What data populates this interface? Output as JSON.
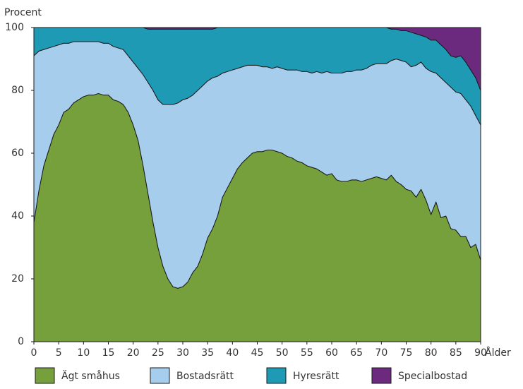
{
  "chart_data": {
    "type": "area",
    "stacked": true,
    "y_label": "Procent",
    "x_label": "Ålder",
    "x": [
      0,
      1,
      2,
      3,
      4,
      5,
      6,
      7,
      8,
      9,
      10,
      11,
      12,
      13,
      14,
      15,
      16,
      17,
      18,
      19,
      20,
      21,
      22,
      23,
      24,
      25,
      26,
      27,
      28,
      29,
      30,
      31,
      32,
      33,
      34,
      35,
      36,
      37,
      38,
      39,
      40,
      41,
      42,
      43,
      44,
      45,
      46,
      47,
      48,
      49,
      50,
      51,
      52,
      53,
      54,
      55,
      56,
      57,
      58,
      59,
      60,
      61,
      62,
      63,
      64,
      65,
      66,
      67,
      68,
      69,
      70,
      71,
      72,
      73,
      74,
      75,
      76,
      77,
      78,
      79,
      80,
      81,
      82,
      83,
      84,
      85,
      86,
      87,
      88,
      89,
      90
    ],
    "xlim": [
      0,
      90
    ],
    "xticks": [
      0,
      5,
      10,
      15,
      20,
      25,
      30,
      35,
      40,
      45,
      50,
      55,
      60,
      65,
      70,
      75,
      80,
      85,
      90
    ],
    "ylim": [
      0,
      100
    ],
    "yticks": [
      0,
      20,
      40,
      60,
      80,
      100
    ],
    "legend": "bottom",
    "series": [
      {
        "name": "Ägt småhus",
        "color": "#76a03c",
        "values": [
          38,
          48,
          56,
          61,
          66,
          69,
          73,
          74,
          76,
          77,
          78,
          78.5,
          78.5,
          79,
          78.5,
          78.5,
          77,
          76.5,
          75.5,
          73,
          69,
          64,
          56,
          47,
          38,
          30,
          24,
          20,
          17.5,
          17,
          17.5,
          19,
          22,
          24,
          28,
          33,
          36,
          40,
          46,
          49,
          52,
          55,
          57,
          58.5,
          60,
          60.5,
          60.5,
          61,
          61,
          60.5,
          60,
          59,
          58.5,
          57.5,
          57,
          56,
          55.5,
          55,
          54,
          53,
          53.5,
          51.5,
          51,
          51,
          51.5,
          51.5,
          51,
          51.5,
          52,
          52.5,
          52,
          51.5,
          53,
          51,
          50,
          48.5,
          48,
          46,
          48.5,
          45,
          40.5,
          44.5,
          39.5,
          40,
          36,
          35.5,
          33.5,
          33.5,
          30,
          31,
          26
        ]
      },
      {
        "name": "Bostadsrätt",
        "color": "#a7cdec",
        "values": [
          53,
          44.5,
          37,
          32.5,
          28,
          25.5,
          22,
          21,
          19.5,
          18.5,
          17.5,
          17,
          17,
          16.5,
          16.5,
          16.5,
          17,
          17,
          17.5,
          18,
          20,
          23,
          29,
          35.5,
          42,
          47,
          51.5,
          55.5,
          58,
          59,
          59.5,
          58.5,
          56.5,
          56,
          53.5,
          50,
          48,
          44.5,
          39.5,
          37,
          34.5,
          32,
          30.5,
          29.5,
          28,
          27.5,
          27,
          26.5,
          26,
          27,
          27,
          27.5,
          28,
          29,
          29,
          30,
          30,
          31,
          31.5,
          33,
          32,
          34,
          34.5,
          35,
          34.5,
          35,
          35.5,
          35.5,
          36,
          36,
          36.5,
          37,
          36.5,
          39,
          39.5,
          40.5,
          39.5,
          42,
          40.5,
          42,
          45.5,
          41,
          44.5,
          42.5,
          45,
          44,
          45.5,
          43.5,
          45,
          41,
          43
        ]
      },
      {
        "name": "Hyresrätt",
        "color": "#1f9ab5",
        "values": [
          9,
          7.5,
          7,
          6.5,
          6,
          5.5,
          5,
          5,
          4.5,
          4.5,
          4.5,
          4.5,
          4.5,
          4.5,
          5,
          5,
          6,
          6.5,
          7,
          9,
          11,
          13,
          15,
          17,
          19.5,
          22.5,
          24,
          24,
          24,
          23.5,
          22.5,
          22,
          21,
          19.5,
          18,
          16.5,
          15.5,
          15.5,
          14.5,
          14,
          13.5,
          13,
          12.5,
          12,
          12,
          12,
          12.5,
          12.5,
          13,
          12.5,
          13,
          13.5,
          13.5,
          13.5,
          14,
          14,
          14.5,
          14,
          14.5,
          14,
          14.5,
          14.5,
          14.5,
          14,
          14,
          13.5,
          13.5,
          13,
          12,
          11.5,
          11.5,
          11.5,
          10,
          9.5,
          9.5,
          10,
          11,
          10,
          8.5,
          10,
          10,
          10.5,
          10.5,
          10.5,
          10,
          11,
          12,
          12,
          11.5,
          12,
          11
        ]
      },
      {
        "name": "Specialbostad",
        "color": "#6b2a7e",
        "values": [
          0,
          0,
          0,
          0,
          0,
          0,
          0,
          0,
          0,
          0,
          0,
          0,
          0,
          0,
          0,
          0,
          0,
          0,
          0,
          0,
          0,
          0,
          0,
          0.5,
          0.5,
          0.5,
          0.5,
          0.5,
          0.5,
          0.5,
          0.5,
          0.5,
          0.5,
          0.5,
          0.5,
          0.5,
          0.5,
          0,
          0,
          0,
          0,
          0,
          0,
          0,
          0,
          0,
          0,
          0,
          0,
          0,
          0,
          0,
          0,
          0,
          0,
          0,
          0,
          0,
          0,
          0,
          0,
          0,
          0,
          0,
          0,
          0,
          0,
          0,
          0,
          0,
          0,
          0,
          0.5,
          0.5,
          1,
          1,
          1.5,
          2,
          2.5,
          3,
          4,
          4,
          5.5,
          7,
          9,
          9.5,
          9,
          11,
          13.5,
          16,
          20
        ]
      }
    ]
  }
}
